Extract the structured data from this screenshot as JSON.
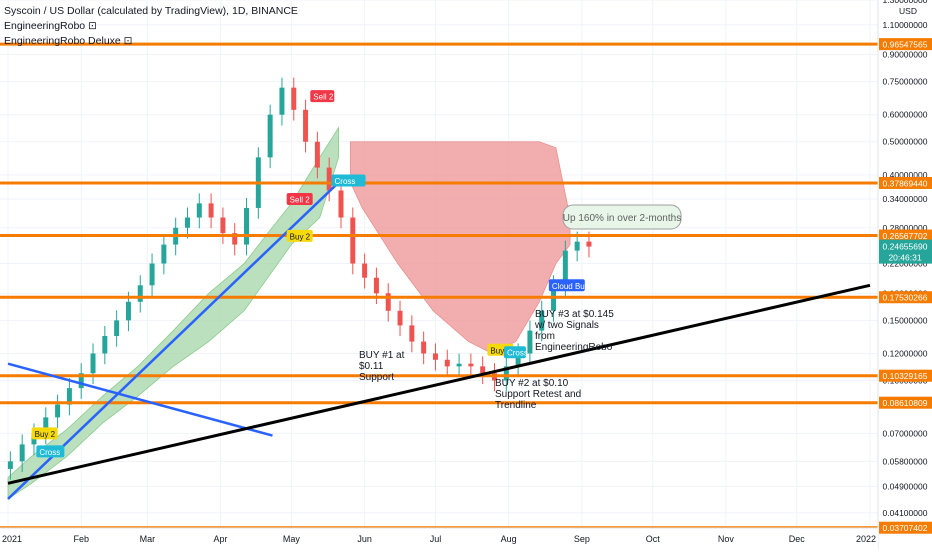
{
  "legend": {
    "title": "Syscoin / US Dollar (calculated by TradingView), 1D, BINANCE",
    "indicator_1": "EngineeringRobo ⊡",
    "indicator_2": "EngineeringRobo Deluxe ⊡"
  },
  "axis": {
    "currency": "USD",
    "price_ticks": [
      "1.30000000",
      "1.10000000",
      "0.90000000",
      "0.75000000",
      "0.60000000",
      "0.50000000",
      "0.40000000",
      "0.34000000",
      "0.28000000",
      "0.22000000",
      "0.18000000",
      "0.15000000",
      "0.12000000",
      "0.10000000",
      "0.07000000",
      "0.05800000",
      "0.04900000",
      "0.04100000"
    ],
    "time_labels": [
      "2021",
      "Feb",
      "Mar",
      "Apr",
      "May",
      "Jun",
      "Jul",
      "Aug",
      "Sep",
      "Oct",
      "Nov",
      "Dec",
      "2022"
    ],
    "countdown": "20:46:31",
    "last_price": "0.24655690"
  },
  "chart_data": {
    "type": "candlestick",
    "title": "Syscoin / US Dollar (calculated by TradingView), 1D, BINANCE",
    "x_range": [
      "2021-01-01",
      "2022-01-01"
    ],
    "y_range": [
      0.037,
      1.3
    ],
    "y_scale": "log",
    "grid": true,
    "price_levels": [
      "0.96547565",
      "0.37869440",
      "0.26567702",
      "0.17530266",
      "0.10329165",
      "0.08610809",
      "0.03707402"
    ],
    "closes": [
      0.058,
      0.065,
      0.07,
      0.078,
      0.085,
      0.095,
      0.105,
      0.12,
      0.135,
      0.15,
      0.17,
      0.19,
      0.22,
      0.25,
      0.28,
      0.3,
      0.33,
      0.3,
      0.27,
      0.25,
      0.32,
      0.45,
      0.6,
      0.72,
      0.62,
      0.5,
      0.42,
      0.36,
      0.3,
      0.22,
      0.2,
      0.18,
      0.16,
      0.145,
      0.13,
      0.12,
      0.115,
      0.11,
      0.112,
      0.11,
      0.105,
      0.1,
      0.11,
      0.12,
      0.14,
      0.16,
      0.19,
      0.24,
      0.255,
      0.2466
    ],
    "close_dates": "every 5 days from 2021-01-02",
    "annotations": [
      {
        "text": "Up 160% in over 2-months"
      },
      {
        "text": "BUY #1 at $0.11 Support"
      },
      {
        "text": "BUY #2 at $0.10 Support Retest and Trendline"
      },
      {
        "text": "BUY #3 at $0.145 w/ two Signals from EngineeringRobo"
      }
    ],
    "signals": [
      {
        "text": "Buy 2",
        "color": "#f5d90a"
      },
      {
        "text": "Cross",
        "color": "#1fbad6"
      },
      {
        "text": "Cloud Buy",
        "color": "#2962ff"
      },
      {
        "text": "Sell 2",
        "color": "#f23645"
      }
    ],
    "colors": {
      "level": "#f57c00",
      "up": "#26a69a",
      "down": "#ef5350",
      "bull_cloud": "#a5d6a7",
      "bear_cloud": "#ef9a9a",
      "trend_blue": "#2962ff",
      "trend_black": "#000000",
      "last_price_label": "#26a69a"
    }
  }
}
